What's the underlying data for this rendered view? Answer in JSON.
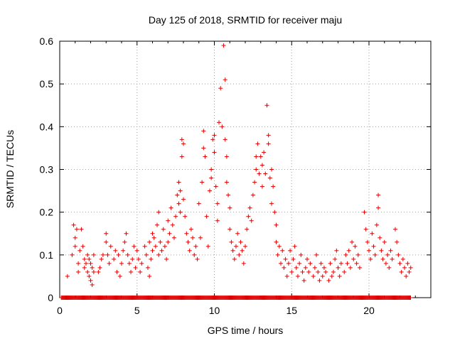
{
  "chart_data": {
    "type": "scatter",
    "title": "Day 125 of 2018, SRMTID for receiver maju",
    "xlabel": "GPS time / hours",
    "ylabel": "SRMTID / TECUs",
    "xlim": [
      0,
      24
    ],
    "ylim": [
      0,
      0.6
    ],
    "xticks": [
      0,
      5,
      10,
      15,
      20
    ],
    "yticks": [
      0,
      0.1,
      0.2,
      0.3,
      0.4,
      0.5,
      0.6
    ],
    "xtick_labels": [
      "0",
      "5",
      "10",
      "15",
      "20"
    ],
    "ytick_labels": [
      "0",
      "0.1",
      "0.2",
      "0.3",
      "0.4",
      "0.5",
      "0.6"
    ],
    "grid": true,
    "marker": "+",
    "marker_color": "#e00000",
    "series": [
      {
        "name": "SRMTID",
        "points": [
          [
            0.5,
            0.05
          ],
          [
            0.8,
            0.1
          ],
          [
            0.9,
            0.17
          ],
          [
            1.0,
            0.14
          ],
          [
            1.0,
            0.12
          ],
          [
            1.1,
            0.16
          ],
          [
            1.2,
            0.08
          ],
          [
            1.2,
            0.06
          ],
          [
            1.3,
            0.11
          ],
          [
            1.4,
            0.16
          ],
          [
            1.5,
            0.12
          ],
          [
            1.6,
            0.09
          ],
          [
            1.6,
            0.07
          ],
          [
            1.7,
            0.08
          ],
          [
            1.8,
            0.1
          ],
          [
            1.8,
            0.06
          ],
          [
            1.9,
            0.05
          ],
          [
            1.9,
            0.09
          ],
          [
            2.0,
            0.04
          ],
          [
            2.0,
            0.08
          ],
          [
            2.1,
            0.03
          ],
          [
            2.1,
            0.07
          ],
          [
            2.2,
            0.1
          ],
          [
            2.2,
            0.06
          ],
          [
            2.5,
            0.06
          ],
          [
            2.6,
            0.07
          ],
          [
            2.7,
            0.09
          ],
          [
            2.8,
            0.1
          ],
          [
            3.0,
            0.15
          ],
          [
            3.0,
            0.13
          ],
          [
            3.1,
            0.1
          ],
          [
            3.2,
            0.08
          ],
          [
            3.3,
            0.12
          ],
          [
            3.5,
            0.09
          ],
          [
            3.6,
            0.11
          ],
          [
            3.7,
            0.06
          ],
          [
            3.8,
            0.1
          ],
          [
            3.9,
            0.05
          ],
          [
            4.0,
            0.08
          ],
          [
            4.1,
            0.11
          ],
          [
            4.2,
            0.13
          ],
          [
            4.3,
            0.15
          ],
          [
            4.4,
            0.1
          ],
          [
            4.5,
            0.08
          ],
          [
            4.6,
            0.06
          ],
          [
            4.7,
            0.09
          ],
          [
            4.8,
            0.12
          ],
          [
            4.9,
            0.07
          ],
          [
            5.0,
            0.11
          ],
          [
            5.1,
            0.09
          ],
          [
            5.2,
            0.06
          ],
          [
            5.3,
            0.08
          ],
          [
            5.5,
            0.12
          ],
          [
            5.6,
            0.1
          ],
          [
            5.7,
            0.07
          ],
          [
            5.8,
            0.05
          ],
          [
            5.8,
            0.13
          ],
          [
            5.9,
            0.09
          ],
          [
            6.0,
            0.15
          ],
          [
            6.0,
            0.11
          ],
          [
            6.1,
            0.14
          ],
          [
            6.2,
            0.12
          ],
          [
            6.3,
            0.17
          ],
          [
            6.4,
            0.1
          ],
          [
            6.4,
            0.2
          ],
          [
            6.5,
            0.13
          ],
          [
            6.6,
            0.11
          ],
          [
            6.7,
            0.16
          ],
          [
            6.8,
            0.12
          ],
          [
            6.9,
            0.09
          ],
          [
            7.0,
            0.13
          ],
          [
            7.0,
            0.18
          ],
          [
            7.1,
            0.15
          ],
          [
            7.2,
            0.21
          ],
          [
            7.3,
            0.17
          ],
          [
            7.4,
            0.14
          ],
          [
            7.5,
            0.19
          ],
          [
            7.6,
            0.24
          ],
          [
            7.7,
            0.22
          ],
          [
            7.7,
            0.27
          ],
          [
            7.8,
            0.25
          ],
          [
            7.8,
            0.2
          ],
          [
            7.9,
            0.37
          ],
          [
            7.9,
            0.33
          ],
          [
            8.0,
            0.23
          ],
          [
            8.0,
            0.36
          ],
          [
            8.1,
            0.19
          ],
          [
            8.2,
            0.15
          ],
          [
            8.3,
            0.13
          ],
          [
            8.4,
            0.11
          ],
          [
            8.5,
            0.16
          ],
          [
            8.6,
            0.14
          ],
          [
            8.7,
            0.1
          ],
          [
            8.8,
            0.12
          ],
          [
            8.9,
            0.09
          ],
          [
            9.0,
            0.22
          ],
          [
            9.1,
            0.14
          ],
          [
            9.2,
            0.27
          ],
          [
            9.3,
            0.35
          ],
          [
            9.3,
            0.39
          ],
          [
            9.4,
            0.33
          ],
          [
            9.5,
            0.19
          ],
          [
            9.6,
            0.12
          ],
          [
            9.7,
            0.25
          ],
          [
            9.8,
            0.3
          ],
          [
            9.8,
            0.28
          ],
          [
            9.9,
            0.37
          ],
          [
            10.0,
            0.38
          ],
          [
            10.0,
            0.34
          ],
          [
            10.1,
            0.26
          ],
          [
            10.2,
            0.22
          ],
          [
            10.2,
            0.18
          ],
          [
            10.3,
            0.41
          ],
          [
            10.4,
            0.49
          ],
          [
            10.5,
            0.4
          ],
          [
            10.6,
            0.59
          ],
          [
            10.7,
            0.51
          ],
          [
            10.7,
            0.37
          ],
          [
            10.8,
            0.33
          ],
          [
            10.8,
            0.27
          ],
          [
            10.9,
            0.24
          ],
          [
            11.0,
            0.21
          ],
          [
            11.0,
            0.16
          ],
          [
            11.1,
            0.13
          ],
          [
            11.2,
            0.11
          ],
          [
            11.3,
            0.09
          ],
          [
            11.4,
            0.12
          ],
          [
            11.5,
            0.15
          ],
          [
            11.6,
            0.1
          ],
          [
            11.7,
            0.13
          ],
          [
            11.8,
            0.11
          ],
          [
            11.9,
            0.08
          ],
          [
            12.0,
            0.12
          ],
          [
            12.1,
            0.16
          ],
          [
            12.2,
            0.19
          ],
          [
            12.3,
            0.21
          ],
          [
            12.4,
            0.18
          ],
          [
            12.5,
            0.24
          ],
          [
            12.6,
            0.27
          ],
          [
            12.7,
            0.33
          ],
          [
            12.7,
            0.3
          ],
          [
            12.8,
            0.36
          ],
          [
            12.9,
            0.29
          ],
          [
            13.0,
            0.33
          ],
          [
            13.1,
            0.31
          ],
          [
            13.1,
            0.26
          ],
          [
            13.2,
            0.34
          ],
          [
            13.3,
            0.29
          ],
          [
            13.4,
            0.45
          ],
          [
            13.5,
            0.38
          ],
          [
            13.5,
            0.36
          ],
          [
            13.6,
            0.28
          ],
          [
            13.7,
            0.3
          ],
          [
            13.7,
            0.22
          ],
          [
            13.8,
            0.26
          ],
          [
            13.9,
            0.2
          ],
          [
            14.0,
            0.17
          ],
          [
            14.0,
            0.13
          ],
          [
            14.1,
            0.1
          ],
          [
            14.2,
            0.12
          ],
          [
            14.3,
            0.08
          ],
          [
            14.4,
            0.11
          ],
          [
            14.5,
            0.07
          ],
          [
            14.6,
            0.09
          ],
          [
            14.7,
            0.05
          ],
          [
            14.8,
            0.08
          ],
          [
            14.9,
            0.11
          ],
          [
            15.0,
            0.06
          ],
          [
            15.1,
            0.09
          ],
          [
            15.2,
            0.12
          ],
          [
            15.3,
            0.07
          ],
          [
            15.4,
            0.05
          ],
          [
            15.5,
            0.08
          ],
          [
            15.6,
            0.1
          ],
          [
            15.7,
            0.06
          ],
          [
            15.8,
            0.04
          ],
          [
            15.9,
            0.07
          ],
          [
            16.0,
            0.09
          ],
          [
            16.1,
            0.06
          ],
          [
            16.2,
            0.08
          ],
          [
            16.4,
            0.05
          ],
          [
            16.5,
            0.07
          ],
          [
            16.6,
            0.1
          ],
          [
            16.7,
            0.06
          ],
          [
            16.8,
            0.04
          ],
          [
            16.9,
            0.08
          ],
          [
            17.0,
            0.05
          ],
          [
            17.1,
            0.07
          ],
          [
            17.2,
            0.06
          ],
          [
            17.4,
            0.04
          ],
          [
            17.5,
            0.08
          ],
          [
            17.6,
            0.05
          ],
          [
            17.7,
            0.06
          ],
          [
            17.8,
            0.09
          ],
          [
            17.9,
            0.11
          ],
          [
            18.0,
            0.07
          ],
          [
            18.1,
            0.05
          ],
          [
            18.2,
            0.08
          ],
          [
            18.4,
            0.06
          ],
          [
            18.5,
            0.1
          ],
          [
            18.6,
            0.08
          ],
          [
            18.7,
            0.11
          ],
          [
            18.8,
            0.07
          ],
          [
            18.9,
            0.13
          ],
          [
            19.0,
            0.09
          ],
          [
            19.1,
            0.12
          ],
          [
            19.2,
            0.08
          ],
          [
            19.3,
            0.1
          ],
          [
            19.4,
            0.07
          ],
          [
            19.7,
            0.2
          ],
          [
            19.8,
            0.16
          ],
          [
            19.9,
            0.13
          ],
          [
            20.0,
            0.11
          ],
          [
            20.1,
            0.09
          ],
          [
            20.2,
            0.15
          ],
          [
            20.3,
            0.12
          ],
          [
            20.4,
            0.1
          ],
          [
            20.5,
            0.17
          ],
          [
            20.6,
            0.24
          ],
          [
            20.6,
            0.21
          ],
          [
            20.7,
            0.14
          ],
          [
            20.8,
            0.11
          ],
          [
            20.9,
            0.09
          ],
          [
            21.0,
            0.13
          ],
          [
            21.1,
            0.08
          ],
          [
            21.2,
            0.1
          ],
          [
            21.3,
            0.07
          ],
          [
            21.4,
            0.11
          ],
          [
            21.5,
            0.09
          ],
          [
            21.7,
            0.16
          ],
          [
            21.8,
            0.13
          ],
          [
            21.9,
            0.1
          ],
          [
            22.0,
            0.08
          ],
          [
            22.1,
            0.06
          ],
          [
            22.2,
            0.09
          ],
          [
            22.3,
            0.07
          ],
          [
            22.4,
            0.05
          ],
          [
            22.5,
            0.08
          ],
          [
            22.6,
            0.06
          ],
          [
            22.7,
            0.07
          ]
        ],
        "zero_band": {
          "x_start": 0.1,
          "x_end": 22.7,
          "value": 0
        }
      }
    ]
  }
}
